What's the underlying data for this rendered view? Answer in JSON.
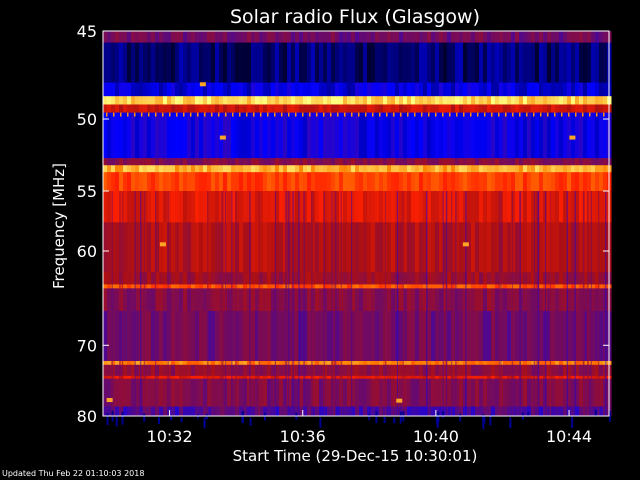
{
  "footer": {
    "updated": "Updated Thu Feb 22 01:10:03 2018"
  },
  "chart_data": {
    "type": "heatmap",
    "title": "Solar radio Flux (Glasgow)",
    "xlabel": "Start Time (29-Dec-15 10:30:01)",
    "ylabel": "Frequency [MHz]",
    "x_unit": "minutes after 10:30:01",
    "xlim": [
      0,
      15.2
    ],
    "ylim": [
      80,
      45
    ],
    "y_scale": "reciprocal",
    "x_ticks": [
      {
        "value": 2,
        "label": "10:32"
      },
      {
        "value": 6,
        "label": "10:36"
      },
      {
        "value": 10,
        "label": "10:40"
      },
      {
        "value": 14,
        "label": "10:44"
      }
    ],
    "y_ticks": [
      {
        "value": 45,
        "label": "45"
      },
      {
        "value": 50,
        "label": "50"
      },
      {
        "value": 55,
        "label": "55"
      },
      {
        "value": 60,
        "label": "60"
      },
      {
        "value": 70,
        "label": "70"
      },
      {
        "value": 80,
        "label": "80"
      }
    ],
    "colormap": [
      "#000033",
      "#0000ff",
      "#6a0a6a",
      "#b01010",
      "#ff2000",
      "#ff8000",
      "#ffff80"
    ],
    "bands": [
      {
        "f_low": 45.0,
        "f_high": 45.6,
        "level": 0.35
      },
      {
        "f_low": 45.6,
        "f_high": 47.8,
        "level": 0.05
      },
      {
        "f_low": 47.8,
        "f_high": 48.6,
        "level": 0.15
      },
      {
        "f_low": 48.6,
        "f_high": 49.1,
        "level": 0.95
      },
      {
        "f_low": 49.1,
        "f_high": 49.6,
        "level": 0.55
      },
      {
        "f_low": 49.6,
        "f_high": 52.6,
        "level": 0.18
      },
      {
        "f_low": 52.6,
        "f_high": 53.1,
        "level": 0.4
      },
      {
        "f_low": 53.1,
        "f_high": 53.6,
        "level": 0.9
      },
      {
        "f_low": 53.6,
        "f_high": 55.0,
        "level": 0.72
      },
      {
        "f_low": 55.0,
        "f_high": 57.5,
        "level": 0.6
      },
      {
        "f_low": 57.5,
        "f_high": 62.0,
        "level": 0.5
      },
      {
        "f_low": 62.0,
        "f_high": 63.2,
        "level": 0.45
      },
      {
        "f_low": 63.2,
        "f_high": 63.6,
        "level": 0.75
      },
      {
        "f_low": 63.6,
        "f_high": 66.0,
        "level": 0.4
      },
      {
        "f_low": 66.0,
        "f_high": 72.0,
        "level": 0.35
      },
      {
        "f_low": 72.0,
        "f_high": 72.5,
        "level": 0.82
      },
      {
        "f_low": 72.5,
        "f_high": 74.0,
        "level": 0.42
      },
      {
        "f_low": 74.0,
        "f_high": 74.4,
        "level": 0.6
      },
      {
        "f_low": 74.4,
        "f_high": 78.5,
        "level": 0.38
      },
      {
        "f_low": 78.5,
        "f_high": 80.0,
        "level": 0.28
      }
    ],
    "spots": [
      {
        "t": 1.8,
        "f": 59.4
      },
      {
        "t": 10.9,
        "f": 59.4
      },
      {
        "t": 0.2,
        "f": 77.5
      },
      {
        "t": 8.9,
        "f": 77.6
      },
      {
        "t": 14.1,
        "f": 51.2
      },
      {
        "t": 3.6,
        "f": 51.2
      },
      {
        "t": 3.0,
        "f": 47.9
      }
    ]
  }
}
